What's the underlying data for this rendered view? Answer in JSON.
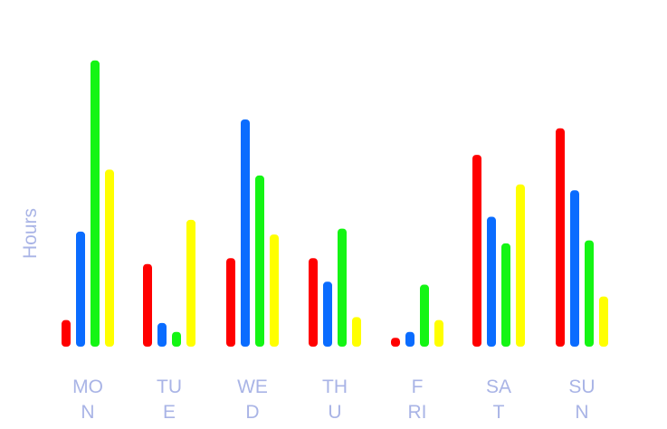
{
  "chart_data": {
    "type": "bar",
    "categories": [
      "MON",
      "TUE",
      "WED",
      "THU",
      "FRI",
      "SAT",
      "SUN"
    ],
    "category_label_lines": [
      [
        "MO",
        "N"
      ],
      [
        "TU",
        "E"
      ],
      [
        "WE",
        "D"
      ],
      [
        "TH",
        "U"
      ],
      [
        "F",
        "RI"
      ],
      [
        "SA",
        "T"
      ],
      [
        "SU",
        "N"
      ]
    ],
    "ylabel": "Hours",
    "xlabel": "",
    "title": "",
    "ylim": [
      0,
      10
    ],
    "grid": false,
    "legend": "none",
    "series": [
      {
        "color": "#ff0000",
        "values": [
          0.9,
          2.8,
          3.0,
          3.0,
          0.3,
          6.5,
          7.4
        ]
      },
      {
        "color": "#0a6cff",
        "values": [
          3.9,
          0.8,
          7.7,
          2.2,
          0.5,
          4.4,
          5.3
        ]
      },
      {
        "color": "#14f514",
        "values": [
          9.7,
          0.5,
          5.8,
          4.0,
          2.1,
          3.5,
          3.6
        ]
      },
      {
        "color": "#ffff00",
        "values": [
          6.0,
          4.3,
          3.8,
          1.0,
          0.9,
          5.5,
          1.7
        ]
      }
    ]
  }
}
